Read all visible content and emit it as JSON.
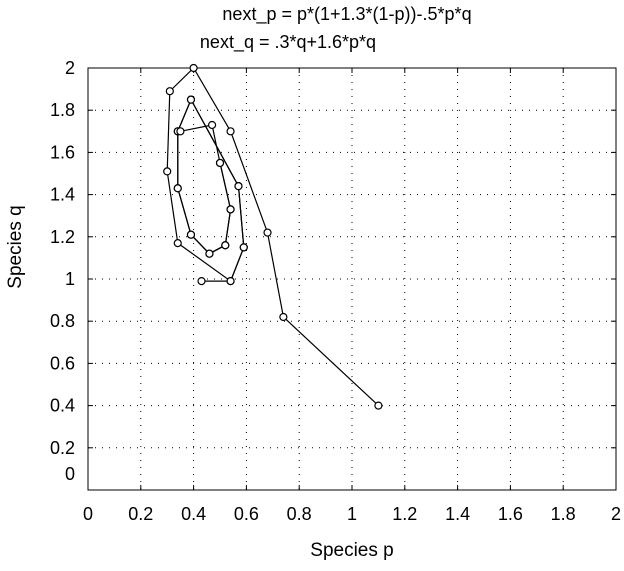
{
  "chart_data": {
    "type": "scatter",
    "title_lines": [
      "next_p = p*(1+1.3*(1-p))-.5*p*q",
      "next_q = .3*q+1.6*p*q"
    ],
    "xlabel": "Species p",
    "ylabel": "Species q",
    "xlim": [
      0,
      2
    ],
    "ylim": [
      0,
      2
    ],
    "xticks": [
      "0",
      "0.2",
      "0.4",
      "0.6",
      "0.8",
      "1",
      "1.2",
      "1.4",
      "1.6",
      "1.8",
      "2"
    ],
    "yticks": [
      "0",
      "0.2",
      "0.4",
      "0.6",
      "0.8",
      "1",
      "1.2",
      "1.4",
      "1.6",
      "1.8",
      "2"
    ],
    "grid": "dotted",
    "connected": true,
    "marker": "open-circle",
    "series": [
      {
        "x": [
          1.1,
          0.74,
          0.68,
          0.54,
          0.4,
          0.31,
          0.3,
          0.34,
          0.54,
          0.59,
          0.57,
          0.39,
          0.34,
          0.34,
          0.39,
          0.46,
          0.52,
          0.54,
          0.5
        ],
        "y": [
          0.4,
          0.82,
          1.22,
          1.7,
          2.0,
          1.89,
          1.51,
          1.17,
          0.99,
          1.15,
          1.44,
          1.85,
          1.7,
          1.43,
          1.21,
          1.12,
          1.16,
          1.33,
          1.55
        ],
        "note": ""
      },
      {
        "x": [
          0.43,
          0.54,
          0.59,
          0.57,
          0.39,
          0.34,
          0.34,
          0.39,
          0.46,
          0.52,
          0.54,
          0.5,
          0.47,
          0.35
        ],
        "y": [
          0.99,
          0.99,
          1.15,
          1.44,
          1.85,
          1.7,
          1.43,
          1.21,
          1.12,
          1.16,
          1.33,
          1.55,
          1.73,
          1.7
        ],
        "note": ""
      }
    ]
  }
}
